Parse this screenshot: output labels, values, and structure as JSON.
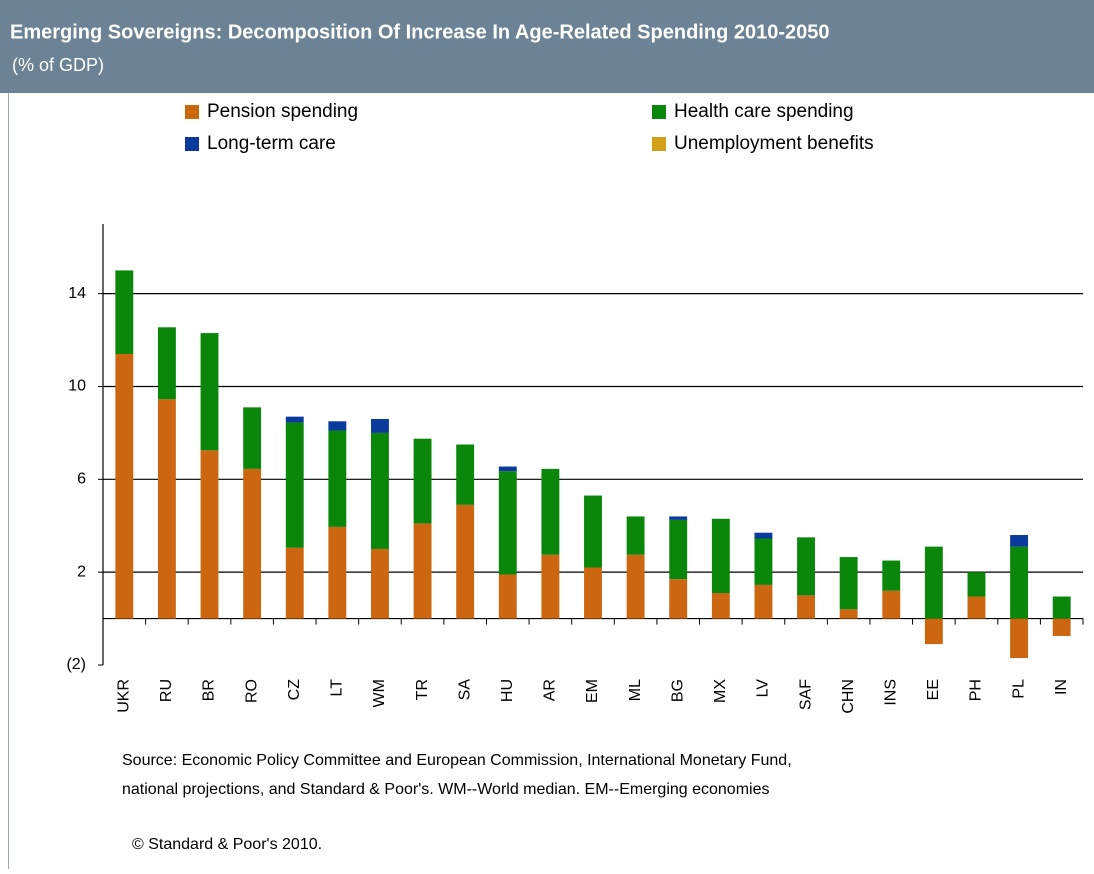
{
  "chart_data": {
    "type": "stacked_bar",
    "title": "Emerging Sovereigns: Decomposition Of Increase In Age-Related Spending 2010-2050",
    "subtitle": "(% of GDP)",
    "categories": [
      "UKR",
      "RU",
      "BR",
      "RO",
      "CZ",
      "LT",
      "WM",
      "TR",
      "SA",
      "HU",
      "AR",
      "EM",
      "ML",
      "BG",
      "MX",
      "LV",
      "SAF",
      "CHN",
      "INS",
      "EE",
      "PH",
      "PL",
      "IN"
    ],
    "series": [
      {
        "name": "Pension spending",
        "color": "#cc6611",
        "values": [
          11.4,
          9.45,
          7.25,
          6.45,
          3.05,
          3.95,
          3.0,
          4.1,
          4.9,
          1.9,
          2.75,
          2.2,
          2.75,
          1.7,
          1.1,
          1.45,
          1.0,
          0.4,
          1.2,
          -1.1,
          0.95,
          -1.7,
          -0.75
        ]
      },
      {
        "name": "Health care spending",
        "color": "#0a870a",
        "values": [
          3.6,
          3.1,
          5.05,
          2.65,
          5.4,
          4.15,
          5.0,
          3.65,
          2.6,
          4.45,
          3.7,
          3.1,
          1.65,
          2.55,
          3.2,
          2.0,
          2.5,
          2.25,
          1.3,
          3.1,
          1.05,
          3.1,
          0.95
        ]
      },
      {
        "name": "Long-term care",
        "color": "#0a3a9c",
        "values": [
          0,
          0,
          0,
          0,
          0.25,
          0.4,
          0.6,
          0,
          0,
          0.2,
          0,
          0,
          0,
          0.15,
          0,
          0.25,
          0,
          0,
          0,
          0,
          0,
          0.5,
          0
        ]
      },
      {
        "name": "Unemployment benefits",
        "color": "#d4a017",
        "values": [
          0,
          0,
          0,
          0,
          0,
          0,
          0,
          0,
          0,
          0,
          0,
          0,
          0,
          0,
          0,
          0,
          0,
          0,
          0,
          0,
          0,
          0,
          0
        ]
      }
    ],
    "ylim": [
      -2,
      17
    ],
    "yticks": [
      {
        "value": -2,
        "label": "(2)"
      },
      2,
      6,
      10,
      14
    ],
    "grid": true,
    "source": "Source: Economic Policy Committee and European Commission, International Monetary Fund,",
    "source_line2": "national projections, and Standard & Poor's. WM--World median. EM--Emerging economies",
    "copyright": "© Standard & Poor's 2010."
  }
}
